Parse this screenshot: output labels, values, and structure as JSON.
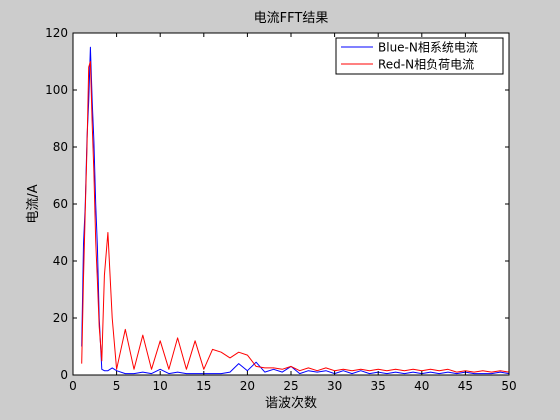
{
  "chart_data": {
    "type": "line",
    "title": "电流FFT结果",
    "xlabel": "谐波次数",
    "ylabel": "电流/A",
    "xlim": [
      0,
      50
    ],
    "ylim": [
      0,
      120
    ],
    "xticks": [
      0,
      5,
      10,
      15,
      20,
      25,
      30,
      35,
      40,
      45,
      50
    ],
    "yticks": [
      0,
      20,
      40,
      60,
      80,
      100,
      120
    ],
    "legend_position": "top-right",
    "series": [
      {
        "name": "Blue-N相系统电流",
        "color": "#0000ff",
        "x": [
          1.0,
          1.2,
          1.4,
          1.6,
          1.8,
          2.0,
          2.2,
          2.4,
          2.6,
          2.8,
          3.0,
          3.3,
          3.6,
          4.0,
          4.5,
          5.0,
          6.0,
          7.0,
          8.0,
          9.0,
          10.0,
          11.0,
          12.0,
          13.0,
          14.0,
          15.0,
          16.0,
          17.0,
          18.0,
          19.0,
          20.0,
          21.0,
          22.0,
          23.0,
          24.0,
          25.0,
          26.0,
          27.0,
          28.0,
          29.0,
          30.0,
          31.0,
          32.0,
          33.0,
          34.0,
          35.0,
          36.0,
          37.0,
          38.0,
          39.0,
          40.0,
          41.0,
          42.0,
          43.0,
          44.0,
          45.0,
          46.0,
          47.0,
          48.0,
          49.0,
          50.0
        ],
        "values": [
          10,
          46,
          59,
          83,
          96,
          115,
          96,
          82,
          60,
          45,
          20,
          2,
          1.5,
          1.5,
          2.5,
          1.5,
          0.5,
          0.5,
          1,
          0.5,
          2,
          0.5,
          1,
          0.5,
          0.5,
          0.5,
          0.5,
          0.5,
          1,
          4,
          1.5,
          4.5,
          1,
          2,
          1,
          3,
          0.5,
          1.5,
          1,
          1.5,
          0.5,
          1.5,
          0.5,
          1.5,
          0.5,
          1,
          0.5,
          1,
          0.5,
          1,
          0.5,
          1,
          0.5,
          1,
          0.5,
          1,
          0.5,
          0.5,
          0.5,
          1,
          0.5
        ]
      },
      {
        "name": "Red-N相负荷电流",
        "color": "#ff0000",
        "x": [
          1.0,
          1.2,
          1.4,
          1.6,
          1.8,
          2.0,
          2.2,
          2.4,
          2.6,
          2.8,
          3.0,
          3.3,
          3.6,
          4.0,
          4.5,
          5.0,
          6.0,
          7.0,
          8.0,
          9.0,
          10.0,
          11.0,
          12.0,
          13.0,
          14.0,
          15.0,
          16.0,
          17.0,
          18.0,
          19.0,
          20.0,
          21.0,
          22.0,
          23.0,
          24.0,
          25.0,
          26.0,
          27.0,
          28.0,
          29.0,
          30.0,
          31.0,
          32.0,
          33.0,
          34.0,
          35.0,
          36.0,
          37.0,
          38.0,
          39.0,
          40.0,
          41.0,
          42.0,
          43.0,
          44.0,
          45.0,
          46.0,
          47.0,
          48.0,
          49.0,
          50.0
        ],
        "values": [
          4,
          34,
          57,
          80,
          108,
          110,
          88,
          71,
          47,
          33,
          17,
          5,
          35,
          50,
          20,
          2,
          16,
          2,
          14,
          2,
          12,
          2,
          13,
          2,
          12,
          2,
          9,
          8,
          6,
          8,
          7,
          3,
          2.5,
          2.5,
          2,
          3,
          1.5,
          2.5,
          1.5,
          2.5,
          1.5,
          2,
          1.5,
          2,
          1.5,
          2,
          1.5,
          2,
          1.5,
          2,
          1.5,
          2,
          1.5,
          2,
          1,
          1.5,
          1,
          1.5,
          1,
          1.5,
          1
        ]
      }
    ]
  }
}
